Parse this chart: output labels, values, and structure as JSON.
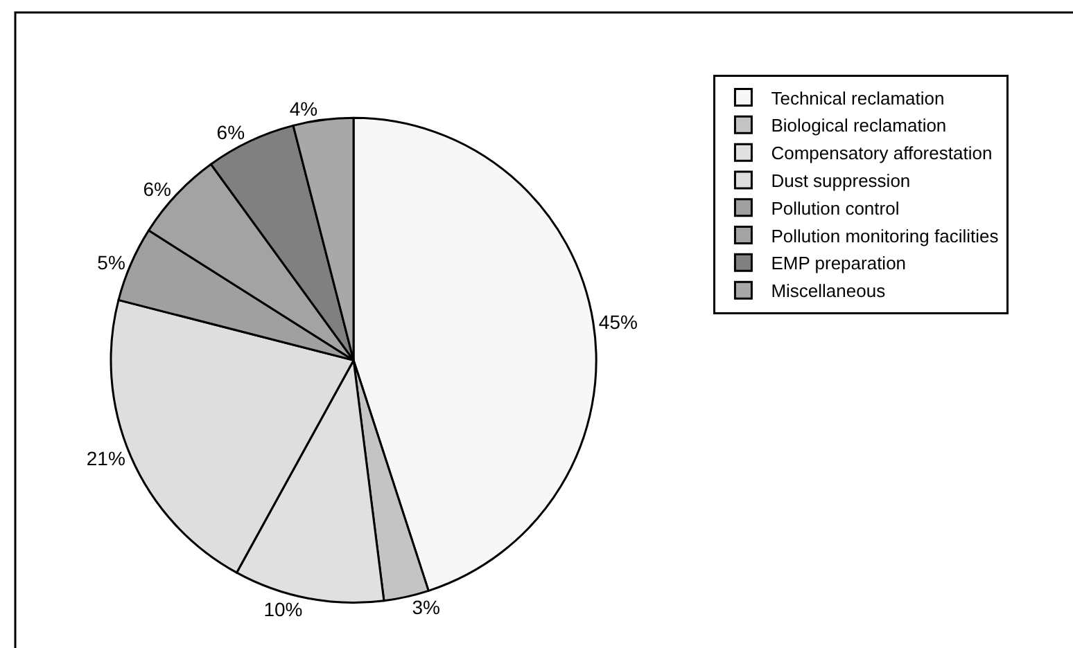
{
  "chart_data": {
    "type": "pie",
    "categories": [
      "Technical reclamation",
      "Biological reclamation",
      "Compensatory afforestation",
      "Dust suppression",
      "Pollution control",
      "Pollution monitoring facilities",
      "EMP preparation",
      "Miscellaneous"
    ],
    "values": [
      45,
      3,
      10,
      21,
      5,
      6,
      6,
      4
    ],
    "value_labels": [
      "45%",
      "3%",
      "10%",
      "21%",
      "5%",
      "6%",
      "6%",
      "4%"
    ],
    "colors": [
      "#f7f7f7",
      "#c4c4c4",
      "#e0e0e0",
      "#dedede",
      "#a0a0a0",
      "#a3a3a3",
      "#808080",
      "#a8a8a8"
    ],
    "legend": "right"
  }
}
